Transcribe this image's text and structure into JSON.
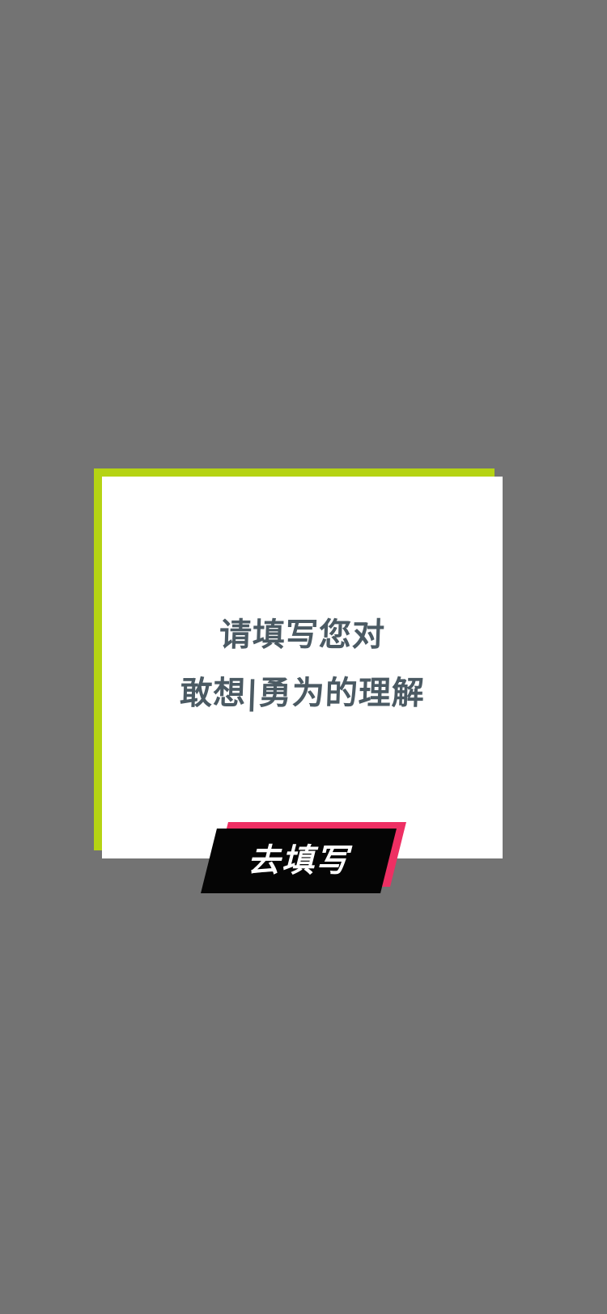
{
  "dialog": {
    "prompt_line_1": "请填写您对",
    "prompt_line_2": "敢想|勇为的理解",
    "cta_label": "去填写"
  },
  "colors": {
    "backdrop": "#737373",
    "accent_green": "#b5d313",
    "card_bg": "#ffffff",
    "text_primary": "#4b5a63",
    "cta_black": "#050505",
    "cta_pink": "#ee2f63",
    "cta_text": "#ffffff"
  }
}
